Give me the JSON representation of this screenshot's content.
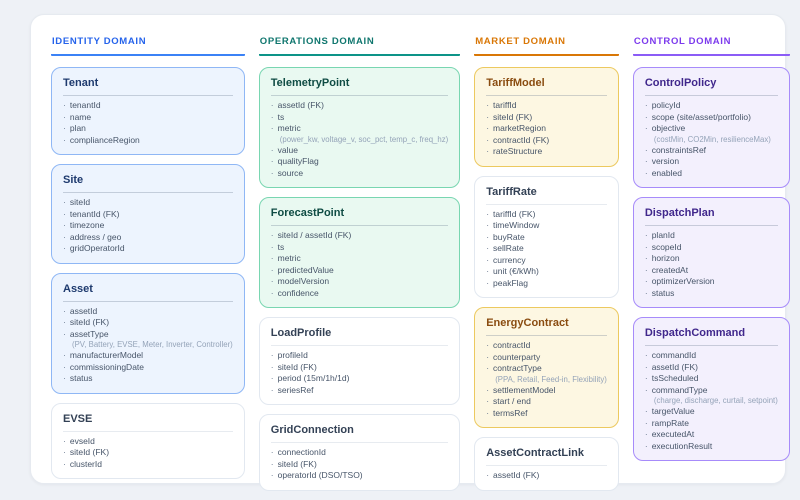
{
  "bullet": "·",
  "neutral": {
    "card_bg": "#ffffff",
    "card_border": "#e2e8f0",
    "title_color": "#334155"
  },
  "domains": [
    {
      "label": "IDENTITY DOMAIN",
      "header_color": "#2563eb",
      "underline_color": "#3b82f6",
      "card_bg": "#edf4fe",
      "card_border": "#8fb7f5",
      "title_color": "#1e3a6e",
      "entities": [
        {
          "title": "Tenant",
          "style": "tinted",
          "fields": [
            {
              "text": "tenantId"
            },
            {
              "text": "name"
            },
            {
              "text": "plan"
            },
            {
              "text": "complianceRegion"
            }
          ]
        },
        {
          "title": "Site",
          "style": "tinted",
          "fields": [
            {
              "text": "siteId"
            },
            {
              "text": "tenantId (FK)"
            },
            {
              "text": "timezone"
            },
            {
              "text": "address / geo"
            },
            {
              "text": "gridOperatorId"
            }
          ]
        },
        {
          "title": "Asset",
          "style": "tinted",
          "fields": [
            {
              "text": "assetId"
            },
            {
              "text": "siteId (FK)"
            },
            {
              "text": "assetType"
            },
            {
              "text": "(PV, Battery, EVSE, Meter, Inverter, Controller)",
              "note": true
            },
            {
              "text": "manufacturerModel"
            },
            {
              "text": "commissioningDate"
            },
            {
              "text": "status"
            }
          ]
        },
        {
          "title": "EVSE",
          "style": "neutral",
          "fields": [
            {
              "text": "evseId"
            },
            {
              "text": "siteId (FK)"
            },
            {
              "text": "clusterId"
            }
          ]
        }
      ]
    },
    {
      "label": "OPERATIONS DOMAIN",
      "header_color": "#0f766e",
      "underline_color": "#0d9488",
      "card_bg": "#e9f9f1",
      "card_border": "#79d6b1",
      "title_color": "#0f4c44",
      "entities": [
        {
          "title": "TelemetryPoint",
          "style": "tinted",
          "fields": [
            {
              "text": "assetId (FK)"
            },
            {
              "text": "ts"
            },
            {
              "text": "metric"
            },
            {
              "text": "(power_kw, voltage_v, soc_pct, temp_c, freq_hz)",
              "note": true
            },
            {
              "text": "value"
            },
            {
              "text": "qualityFlag"
            },
            {
              "text": "source"
            }
          ]
        },
        {
          "title": "ForecastPoint",
          "style": "tinted",
          "fields": [
            {
              "text": "siteId / assetId (FK)"
            },
            {
              "text": "ts"
            },
            {
              "text": "metric"
            },
            {
              "text": "predictedValue"
            },
            {
              "text": "modelVersion"
            },
            {
              "text": "confidence"
            }
          ]
        },
        {
          "title": "LoadProfile",
          "style": "neutral",
          "fields": [
            {
              "text": "profileId"
            },
            {
              "text": "siteId (FK)"
            },
            {
              "text": "period (15m/1h/1d)"
            },
            {
              "text": "seriesRef"
            }
          ]
        },
        {
          "title": "GridConnection",
          "style": "neutral",
          "fields": [
            {
              "text": "connectionId"
            },
            {
              "text": "siteId (FK)"
            },
            {
              "text": "operatorId (DSO/TSO)"
            }
          ]
        }
      ]
    },
    {
      "label": "MARKET DOMAIN",
      "header_color": "#d97706",
      "underline_color": "#d97706",
      "card_bg": "#fdf7e2",
      "card_border": "#ecc95f",
      "title_color": "#8a4c10",
      "entities": [
        {
          "title": "TariffModel",
          "style": "tinted",
          "fields": [
            {
              "text": "tariffId"
            },
            {
              "text": "siteId (FK)"
            },
            {
              "text": "marketRegion"
            },
            {
              "text": "contractId (FK)"
            },
            {
              "text": "rateStructure"
            }
          ]
        },
        {
          "title": "TariffRate",
          "style": "neutral",
          "fields": [
            {
              "text": "tariffId (FK)"
            },
            {
              "text": "timeWindow"
            },
            {
              "text": "buyRate"
            },
            {
              "text": "sellRate"
            },
            {
              "text": "currency"
            },
            {
              "text": "unit (€/kWh)"
            },
            {
              "text": "peakFlag"
            }
          ]
        },
        {
          "title": "EnergyContract",
          "style": "tinted",
          "fields": [
            {
              "text": "contractId"
            },
            {
              "text": "counterparty"
            },
            {
              "text": "contractType"
            },
            {
              "text": "(PPA, Retail, Feed-in, Flexibility)",
              "note": true
            },
            {
              "text": "settlementModel"
            },
            {
              "text": "start / end"
            },
            {
              "text": "termsRef"
            }
          ]
        },
        {
          "title": "AssetContractLink",
          "style": "neutral",
          "fields": [
            {
              "text": "assetId (FK)"
            }
          ]
        }
      ]
    },
    {
      "label": "CONTROL DOMAIN",
      "header_color": "#7c3aed",
      "underline_color": "#8b5cf6",
      "card_bg": "#f3f0fd",
      "card_border": "#a78bfa",
      "title_color": "#40278c",
      "entities": [
        {
          "title": "ControlPolicy",
          "style": "tinted",
          "fields": [
            {
              "text": "policyId"
            },
            {
              "text": "scope (site/asset/portfolio)"
            },
            {
              "text": "objective"
            },
            {
              "text": "(costMin, CO2Min, resilienceMax)",
              "note": true
            },
            {
              "text": "constraintsRef"
            },
            {
              "text": "version"
            },
            {
              "text": "enabled"
            }
          ]
        },
        {
          "title": "DispatchPlan",
          "style": "tinted",
          "fields": [
            {
              "text": "planId"
            },
            {
              "text": "scopeId"
            },
            {
              "text": "horizon"
            },
            {
              "text": "createdAt"
            },
            {
              "text": "optimizerVersion"
            },
            {
              "text": "status"
            }
          ]
        },
        {
          "title": "DispatchCommand",
          "style": "tinted",
          "fields": [
            {
              "text": "commandId"
            },
            {
              "text": "assetId (FK)"
            },
            {
              "text": "tsScheduled"
            },
            {
              "text": "commandType"
            },
            {
              "text": "(charge, discharge, curtail, setpoint)",
              "note": true
            },
            {
              "text": "targetValue"
            },
            {
              "text": "rampRate"
            },
            {
              "text": "executedAt"
            },
            {
              "text": "executionResult"
            }
          ]
        }
      ]
    }
  ]
}
